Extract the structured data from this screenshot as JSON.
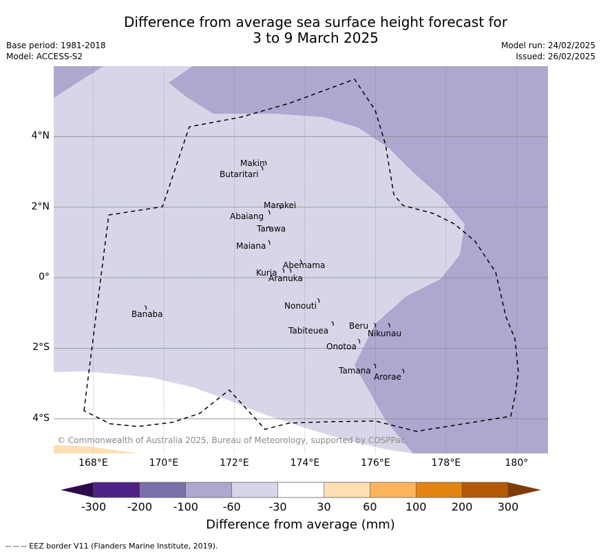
{
  "title_line1": "Difference from average sea surface height forecast for",
  "title_line2": "3 to 9 March 2025",
  "base_period": "Base period: 1981-2018",
  "model": "Model: ACCESS-S2",
  "model_run": "Model run: 24/02/2025",
  "issued": "Issued: 26/02/2025",
  "lat_ticks": [
    "4°N",
    "2°N",
    "0°",
    "2°S",
    "4°S"
  ],
  "lon_ticks": [
    "168°E",
    "170°E",
    "172°E",
    "174°E",
    "176°E",
    "178°E",
    "180°"
  ],
  "islands": [
    {
      "name": "Makin",
      "lon": 172.9,
      "lat": 3.25
    },
    {
      "name": "Butaritari",
      "lon": 172.8,
      "lat": 3.1
    },
    {
      "name": "Marakei",
      "lon": 173.3,
      "lat": 2.0
    },
    {
      "name": "Abaiang",
      "lon": 173.0,
      "lat": 1.85
    },
    {
      "name": "Tarawa",
      "lon": 173.0,
      "lat": 1.4
    },
    {
      "name": "Maiana",
      "lon": 173.0,
      "lat": 1.0
    },
    {
      "name": "Abemama",
      "lon": 173.9,
      "lat": 0.45
    },
    {
      "name": "Kuria",
      "lon": 173.4,
      "lat": 0.2
    },
    {
      "name": "Aranuka",
      "lon": 173.6,
      "lat": 0.2
    },
    {
      "name": "Nonouti",
      "lon": 174.4,
      "lat": -0.65
    },
    {
      "name": "Banaba",
      "lon": 169.5,
      "lat": -0.85
    },
    {
      "name": "Tabiteuea",
      "lon": 174.8,
      "lat": -1.3
    },
    {
      "name": "Beru",
      "lon": 176.0,
      "lat": -1.35
    },
    {
      "name": "Nikunau",
      "lon": 176.4,
      "lat": -1.35
    },
    {
      "name": "Onotoa",
      "lon": 175.55,
      "lat": -1.8
    },
    {
      "name": "Tamana",
      "lon": 176.0,
      "lat": -2.5
    },
    {
      "name": "Arorae",
      "lon": 176.8,
      "lat": -2.65
    }
  ],
  "copyright": "© Commonwealth of Australia 2025, Bureau of Meteorology, supported by COSPPac",
  "colorbar": {
    "ticks": [
      "-300",
      "-200",
      "-100",
      "-60",
      "-30",
      "30",
      "60",
      "100",
      "200",
      "300"
    ],
    "colors": [
      "#4e2184",
      "#7b6fa8",
      "#aea7cf",
      "#d6d6e8",
      "#ffffff",
      "#ffdeb1",
      "#fdb55d",
      "#e38413",
      "#b35806"
    ],
    "extend_low_color": "#2d0a4d",
    "extend_high_color": "#7f3b08",
    "title": "Difference from average (mm)"
  },
  "footer": "--  --  -- EEZ border V11 (Flanders Marine Institute, 2019)."
}
